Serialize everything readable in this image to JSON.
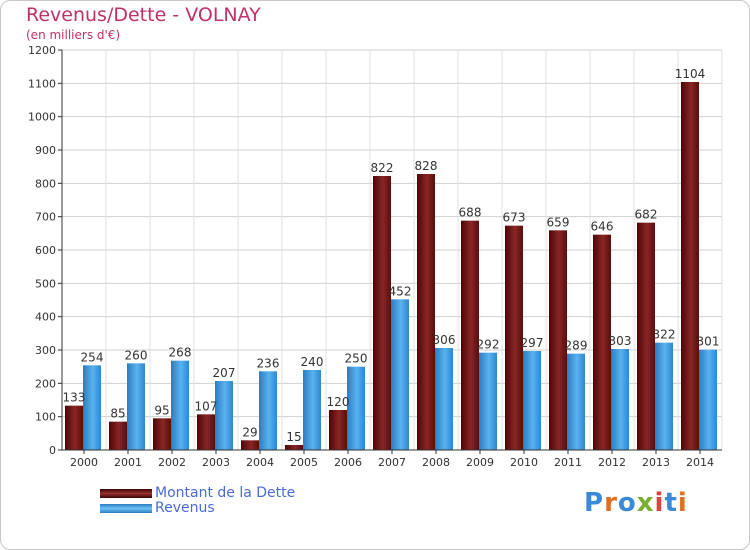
{
  "header": {
    "title": "Revenus/Dette - VOLNAY",
    "subtitle": "(en milliers d'€)"
  },
  "legend": {
    "items": [
      {
        "label": "Montant de la Dette",
        "color": "#7a1a1a"
      },
      {
        "label": "Revenus",
        "color": "#3a9ae0"
      }
    ]
  },
  "brand": {
    "text": "Proxiti",
    "letter_colors": [
      "#3a8ad8",
      "#e07020",
      "#3a8ad8",
      "#7ab030",
      "#e04040",
      "#3a8ad8",
      "#e07020"
    ]
  },
  "chart_data": {
    "type": "bar",
    "categories": [
      "2000",
      "2001",
      "2002",
      "2003",
      "2004",
      "2005",
      "2006",
      "2007",
      "2008",
      "2009",
      "2010",
      "2011",
      "2012",
      "2013",
      "2014"
    ],
    "series": [
      {
        "name": "Montant de la Dette",
        "color": "#7a1a1a",
        "values": [
          133,
          85,
          95,
          107,
          29,
          15,
          120,
          822,
          828,
          688,
          673,
          659,
          646,
          682,
          1104
        ]
      },
      {
        "name": "Revenus",
        "color": "#3a9ae0",
        "values": [
          254,
          260,
          268,
          207,
          236,
          240,
          250,
          452,
          306,
          292,
          297,
          289,
          303,
          322,
          301
        ]
      }
    ],
    "ylim": [
      0,
      1200
    ],
    "yticks": [
      0,
      100,
      200,
      300,
      400,
      500,
      600,
      700,
      800,
      900,
      1000,
      1100,
      1200
    ],
    "grid": true
  }
}
